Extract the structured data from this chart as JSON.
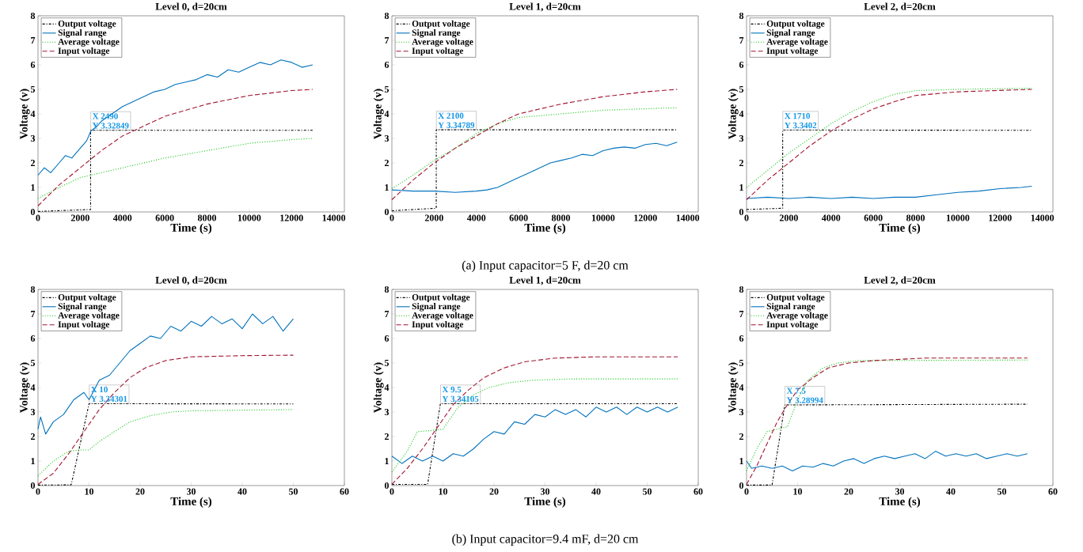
{
  "chart_data": [
    {
      "type": "line",
      "title": "Level 0, d=20cm",
      "xlabel": "Time (s)",
      "ylabel": "Voltage (v)",
      "xlim": [
        0,
        14500
      ],
      "ylim": [
        0,
        8
      ],
      "xticks": [
        0,
        2000,
        4000,
        6000,
        8000,
        10000,
        12000,
        14000
      ],
      "yticks": [
        0,
        1,
        2,
        3,
        4,
        5,
        6,
        7,
        8
      ],
      "legend": "top left",
      "marker": "none",
      "series": [
        {
          "name": "Output voltage",
          "color": "#000000",
          "line_style": "dashdot",
          "x": [
            0,
            2490,
            2490,
            13000
          ],
          "values": [
            0.02,
            0.1,
            3.33,
            3.33
          ]
        },
        {
          "name": "Signal range",
          "color": "#0072bd",
          "line_style": "solid",
          "x": [
            0,
            300,
            600,
            1000,
            1300,
            1600,
            2000,
            2300,
            2500,
            2800,
            3000,
            3500,
            4000,
            4500,
            5000,
            5500,
            6000,
            6500,
            7000,
            7500,
            8000,
            8500,
            9000,
            9500,
            10000,
            10500,
            11000,
            11500,
            12000,
            12500,
            13000
          ],
          "values": [
            1.5,
            1.8,
            1.6,
            2.0,
            2.3,
            2.2,
            2.6,
            2.9,
            3.3,
            3.5,
            3.7,
            4.0,
            4.3,
            4.5,
            4.7,
            4.9,
            5.0,
            5.2,
            5.3,
            5.4,
            5.6,
            5.5,
            5.8,
            5.7,
            5.9,
            6.1,
            6.0,
            6.2,
            6.1,
            5.9,
            6.0
          ]
        },
        {
          "name": "Average voltage",
          "color": "#1ec81e",
          "line_style": "dotted",
          "x": [
            0,
            1000,
            2000,
            4000,
            6000,
            8000,
            10000,
            12000,
            13000
          ],
          "values": [
            0.55,
            1.0,
            1.4,
            1.8,
            2.2,
            2.5,
            2.8,
            2.95,
            3.0
          ]
        },
        {
          "name": "Input voltage",
          "color": "#a2142f",
          "line_style": "dashed",
          "x": [
            0,
            1000,
            2000,
            3000,
            4000,
            6000,
            8000,
            10000,
            12000,
            13000
          ],
          "values": [
            0.25,
            1.1,
            1.8,
            2.5,
            3.1,
            3.9,
            4.4,
            4.75,
            4.95,
            5.0
          ]
        }
      ],
      "annotations": [
        {
          "text": "X 2490",
          "x": 2490,
          "y": 3.32849
        },
        {
          "text": "Y 3.32849",
          "x": 2490,
          "y": 3.32849
        }
      ]
    },
    {
      "type": "line",
      "title": "Level 1, d=20cm",
      "xlabel": "Time (s)",
      "ylabel": "Voltage (v)",
      "xlim": [
        0,
        14500
      ],
      "ylim": [
        0,
        8
      ],
      "xticks": [
        0,
        2000,
        4000,
        6000,
        8000,
        10000,
        12000,
        14000
      ],
      "yticks": [
        0,
        1,
        2,
        3,
        4,
        5,
        6,
        7,
        8
      ],
      "legend": "top left",
      "marker": "none",
      "series": [
        {
          "name": "Output voltage",
          "color": "#000000",
          "line_style": "dashdot",
          "x": [
            0,
            2100,
            2100,
            13500
          ],
          "values": [
            0.05,
            0.15,
            3.35,
            3.35
          ]
        },
        {
          "name": "Signal range",
          "color": "#0072bd",
          "line_style": "solid",
          "x": [
            0,
            1000,
            2000,
            3000,
            4000,
            4500,
            5000,
            5500,
            6000,
            6500,
            7000,
            7500,
            8000,
            8500,
            9000,
            9500,
            10000,
            10500,
            11000,
            11500,
            12000,
            12500,
            13000,
            13500
          ],
          "values": [
            0.9,
            0.85,
            0.85,
            0.8,
            0.85,
            0.9,
            1.0,
            1.2,
            1.4,
            1.6,
            1.8,
            2.0,
            2.1,
            2.2,
            2.35,
            2.3,
            2.5,
            2.6,
            2.65,
            2.6,
            2.75,
            2.8,
            2.7,
            2.85
          ]
        },
        {
          "name": "Average voltage",
          "color": "#1ec81e",
          "line_style": "dotted",
          "x": [
            0,
            1000,
            2000,
            3000,
            4000,
            5000,
            6000,
            8000,
            10000,
            13500
          ],
          "values": [
            0.95,
            1.5,
            2.1,
            2.6,
            3.2,
            3.6,
            3.85,
            4.0,
            4.15,
            4.25
          ]
        },
        {
          "name": "Input voltage",
          "color": "#a2142f",
          "line_style": "dashed",
          "x": [
            0,
            1000,
            2000,
            3000,
            4000,
            5000,
            6000,
            8000,
            10000,
            12000,
            13500
          ],
          "values": [
            0.5,
            1.3,
            2.0,
            2.6,
            3.1,
            3.6,
            4.0,
            4.4,
            4.7,
            4.9,
            5.0
          ]
        }
      ],
      "annotations": [
        {
          "text": "X 2100",
          "x": 2100,
          "y": 3.34789
        },
        {
          "text": "Y 3.34789",
          "x": 2100,
          "y": 3.34789
        },
        "(a) Input capacitor=5 F, d=20 cm"
      ]
    },
    {
      "type": "line",
      "title": "Level 2, d=20cm",
      "xlabel": "Time (s)",
      "ylabel": "Voltage (v)",
      "xlim": [
        0,
        14500
      ],
      "ylim": [
        0,
        8
      ],
      "xticks": [
        0,
        2000,
        4000,
        6000,
        8000,
        10000,
        12000,
        14000
      ],
      "yticks": [
        0,
        1,
        2,
        3,
        4,
        5,
        6,
        7,
        8
      ],
      "legend": "top left",
      "marker": "none",
      "series": [
        {
          "name": "Output voltage",
          "color": "#000000",
          "line_style": "dashdot",
          "x": [
            0,
            1710,
            1710,
            13500
          ],
          "values": [
            0.1,
            0.15,
            3.34,
            3.33
          ]
        },
        {
          "name": "Signal range",
          "color": "#0072bd",
          "line_style": "solid",
          "x": [
            0,
            1000,
            2000,
            3000,
            4000,
            5000,
            6000,
            7000,
            8000,
            9000,
            10000,
            11000,
            12000,
            13000,
            13500
          ],
          "values": [
            0.55,
            0.6,
            0.55,
            0.6,
            0.55,
            0.6,
            0.55,
            0.6,
            0.6,
            0.7,
            0.8,
            0.85,
            0.95,
            1.0,
            1.05
          ]
        },
        {
          "name": "Average voltage",
          "color": "#1ec81e",
          "line_style": "dotted",
          "x": [
            0,
            1000,
            2000,
            3000,
            4000,
            5000,
            6000,
            7000,
            8000,
            10000,
            13500
          ],
          "values": [
            1.0,
            1.7,
            2.4,
            3.0,
            3.6,
            4.1,
            4.5,
            4.8,
            4.95,
            5.0,
            5.05
          ]
        },
        {
          "name": "Input voltage",
          "color": "#a2142f",
          "line_style": "dashed",
          "x": [
            0,
            1000,
            2000,
            3000,
            4000,
            5000,
            6000,
            7000,
            8000,
            10000,
            13500
          ],
          "values": [
            0.5,
            1.3,
            2.0,
            2.7,
            3.3,
            3.8,
            4.2,
            4.5,
            4.75,
            4.9,
            5.0
          ]
        }
      ],
      "annotations": [
        {
          "text": "X 1710",
          "x": 1710,
          "y": 3.3402
        },
        {
          "text": "Y 3.3402",
          "x": 1710,
          "y": 3.3402
        }
      ]
    },
    {
      "type": "line",
      "title": "Level 0, d=20cm",
      "xlabel": "Time (s)",
      "ylabel": "Voltage (v)",
      "xlim": [
        0,
        60
      ],
      "ylim": [
        0,
        8
      ],
      "xticks": [
        0,
        10,
        20,
        30,
        40,
        50,
        60
      ],
      "yticks": [
        0,
        1,
        2,
        3,
        4,
        5,
        6,
        7,
        8
      ],
      "legend": "top left",
      "marker": "none",
      "series": [
        {
          "name": "Output voltage",
          "color": "#000000",
          "line_style": "dashdot",
          "x": [
            0,
            6.5,
            10,
            50
          ],
          "values": [
            0.02,
            0.03,
            3.34,
            3.33
          ]
        },
        {
          "name": "Signal range",
          "color": "#0072bd",
          "line_style": "solid",
          "x": [
            0,
            0.5,
            1.5,
            3,
            5,
            7,
            9,
            10,
            12,
            14,
            16,
            18,
            20,
            22,
            24,
            26,
            28,
            30,
            32,
            34,
            36,
            38,
            40,
            42,
            44,
            46,
            48,
            50
          ],
          "values": [
            2.3,
            2.8,
            2.1,
            2.6,
            2.9,
            3.5,
            3.8,
            3.5,
            4.3,
            4.5,
            5.0,
            5.5,
            5.8,
            6.1,
            6.0,
            6.5,
            6.3,
            6.7,
            6.5,
            6.9,
            6.6,
            6.8,
            6.4,
            7.0,
            6.6,
            6.9,
            6.3,
            6.8
          ]
        },
        {
          "name": "Average voltage",
          "color": "#1ec81e",
          "line_style": "dotted",
          "x": [
            0,
            3,
            6,
            8,
            10,
            12,
            15,
            18,
            22,
            26,
            30,
            50
          ],
          "values": [
            0.4,
            1.0,
            1.4,
            1.45,
            1.45,
            1.8,
            2.2,
            2.6,
            2.85,
            3.0,
            3.05,
            3.1
          ]
        },
        {
          "name": "Input voltage",
          "color": "#a2142f",
          "line_style": "dashed",
          "x": [
            0,
            3,
            6,
            9,
            12,
            15,
            18,
            21,
            25,
            30,
            40,
            50
          ],
          "values": [
            0.05,
            0.5,
            1.3,
            2.2,
            3.1,
            3.8,
            4.4,
            4.8,
            5.1,
            5.25,
            5.3,
            5.32
          ]
        }
      ],
      "annotations": [
        {
          "text": "X 10",
          "x": 10,
          "y": 3.34301
        },
        {
          "text": "Y 3.34301",
          "x": 10,
          "y": 3.34301
        }
      ]
    },
    {
      "type": "line",
      "title": "Level 1, d=20cm",
      "xlabel": "Time (s)",
      "ylabel": "Voltage (v)",
      "xlim": [
        0,
        60
      ],
      "ylim": [
        0,
        8
      ],
      "xticks": [
        0,
        10,
        20,
        30,
        40,
        50,
        60
      ],
      "yticks": [
        0,
        1,
        2,
        3,
        4,
        5,
        6,
        7,
        8
      ],
      "legend": "top left",
      "marker": "none",
      "series": [
        {
          "name": "Output voltage",
          "color": "#000000",
          "line_style": "dashdot",
          "x": [
            0,
            7,
            9.5,
            56
          ],
          "values": [
            0.05,
            0.05,
            3.34,
            3.34
          ]
        },
        {
          "name": "Signal range",
          "color": "#0072bd",
          "line_style": "solid",
          "x": [
            0,
            2,
            4,
            6,
            8,
            10,
            12,
            14,
            16,
            18,
            20,
            22,
            24,
            26,
            28,
            30,
            32,
            34,
            36,
            38,
            40,
            42,
            44,
            46,
            48,
            50,
            52,
            54,
            56
          ],
          "values": [
            1.2,
            0.9,
            1.2,
            1.0,
            1.2,
            1.0,
            1.3,
            1.2,
            1.5,
            1.9,
            2.2,
            2.1,
            2.6,
            2.5,
            2.9,
            2.8,
            3.1,
            2.9,
            3.1,
            2.8,
            3.2,
            3.0,
            3.2,
            2.9,
            3.2,
            3.0,
            3.2,
            3.0,
            3.2
          ]
        },
        {
          "name": "Average voltage",
          "color": "#1ec81e",
          "line_style": "dotted",
          "x": [
            0,
            3,
            5,
            8,
            10,
            13,
            16,
            19,
            23,
            28,
            35,
            56
          ],
          "values": [
            0.55,
            1.4,
            2.2,
            2.25,
            2.3,
            3.2,
            3.7,
            4.0,
            4.2,
            4.3,
            4.35,
            4.35
          ]
        },
        {
          "name": "Input voltage",
          "color": "#a2142f",
          "line_style": "dashed",
          "x": [
            0,
            3,
            6,
            9,
            12,
            15,
            18,
            22,
            26,
            32,
            40,
            56
          ],
          "values": [
            0.05,
            0.7,
            1.5,
            2.4,
            3.3,
            3.9,
            4.4,
            4.8,
            5.05,
            5.2,
            5.25,
            5.25
          ]
        }
      ],
      "annotations": [
        {
          "text": "X 9.5",
          "x": 9.5,
          "y": 3.34105
        },
        {
          "text": "Y 3.34105",
          "x": 9.5,
          "y": 3.34105
        },
        "(b) Input capacitor=9.4 mF, d=20 cm"
      ]
    },
    {
      "type": "line",
      "title": "Level 2, d=20cm",
      "xlabel": "Time (s)",
      "ylabel": "Voltage (v)",
      "xlim": [
        0,
        60
      ],
      "ylim": [
        0,
        8
      ],
      "xticks": [
        0,
        10,
        20,
        30,
        40,
        50,
        60
      ],
      "yticks": [
        0,
        1,
        2,
        3,
        4,
        5,
        6,
        7,
        8
      ],
      "legend": "top left",
      "marker": "none",
      "series": [
        {
          "name": "Output voltage",
          "color": "#000000",
          "line_style": "dashdot",
          "x": [
            0,
            5,
            7.5,
            55
          ],
          "values": [
            0.02,
            0.02,
            3.29,
            3.32
          ]
        },
        {
          "name": "Signal range",
          "color": "#0072bd",
          "line_style": "solid",
          "x": [
            0,
            1,
            3,
            5,
            7,
            9,
            11,
            13,
            15,
            17,
            19,
            21,
            23,
            25,
            27,
            29,
            31,
            33,
            35,
            37,
            39,
            41,
            43,
            45,
            47,
            49,
            51,
            53,
            55
          ],
          "values": [
            1.0,
            0.7,
            0.8,
            0.7,
            0.8,
            0.6,
            0.8,
            0.75,
            0.9,
            0.8,
            1.0,
            1.1,
            0.9,
            1.1,
            1.2,
            1.1,
            1.2,
            1.3,
            1.1,
            1.4,
            1.2,
            1.3,
            1.2,
            1.3,
            1.1,
            1.2,
            1.3,
            1.2,
            1.3
          ]
        },
        {
          "name": "Average voltage",
          "color": "#1ec81e",
          "line_style": "dotted",
          "x": [
            0,
            2,
            4,
            6,
            8,
            10,
            12,
            15,
            18,
            22,
            55
          ],
          "values": [
            0.6,
            1.5,
            2.2,
            2.3,
            2.4,
            3.5,
            4.3,
            4.8,
            5.0,
            5.1,
            5.12
          ]
        },
        {
          "name": "Input voltage",
          "color": "#a2142f",
          "line_style": "dashed",
          "x": [
            0,
            2,
            4,
            6,
            8,
            10,
            13,
            16,
            20,
            25,
            35,
            55
          ],
          "values": [
            0.05,
            0.8,
            1.7,
            2.6,
            3.3,
            3.9,
            4.4,
            4.8,
            5.0,
            5.1,
            5.2,
            5.2
          ]
        }
      ],
      "annotations": [
        {
          "text": "X 7.5",
          "x": 7.5,
          "y": 3.28994
        },
        {
          "text": "Y 3.28994",
          "x": 7.5,
          "y": 3.28994
        }
      ]
    }
  ]
}
